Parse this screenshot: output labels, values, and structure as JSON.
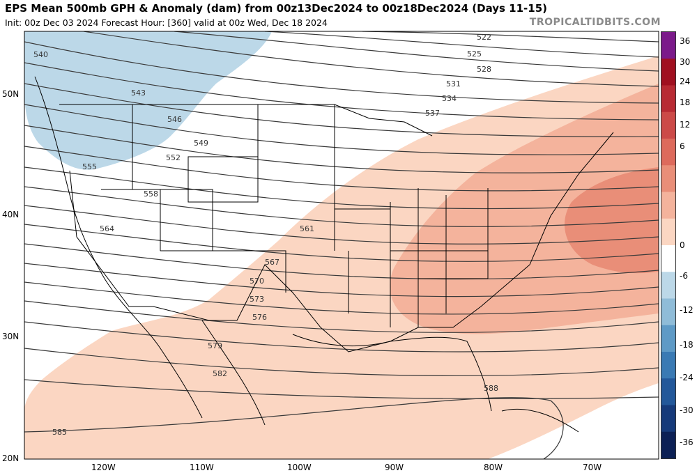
{
  "header": {
    "title": "EPS Mean 500mb GPH & Anomaly (dam) from 00z13Dec2024 to 00z18Dec2024 (Days 11-15)",
    "subtitle": "Init: 00z Dec 03 2024   Forecast Hour: [360]   valid at 00z Wed, Dec 18 2024",
    "brand": "TROPICALTIDBITS.COM"
  },
  "axes": {
    "lat_labels": [
      "50N",
      "40N",
      "30N",
      "20N"
    ],
    "lon_labels": [
      "120W",
      "110W",
      "100W",
      "90W",
      "80W",
      "70W"
    ]
  },
  "colorbar": {
    "ticks": [
      "36",
      "30",
      "24",
      "18",
      "12",
      "6",
      "0",
      "-6",
      "-12",
      "-18",
      "-24",
      "-30",
      "-36"
    ],
    "colors": [
      "#7b1a8a",
      "#a01020",
      "#b82a33",
      "#cc4a48",
      "#dd6a5c",
      "#e98e78",
      "#f4b39c",
      "#fbd6c2",
      "#ffffff",
      "#bcd8e8",
      "#8fbcd8",
      "#5e9ac6",
      "#3a7ab4",
      "#23589a",
      "#163a7a",
      "#0c2055"
    ]
  },
  "contour_labels": [
    "522",
    "525",
    "528",
    "531",
    "534",
    "537",
    "540",
    "543",
    "546",
    "549",
    "552",
    "555",
    "558",
    "561",
    "564",
    "567",
    "570",
    "573",
    "576",
    "579",
    "582",
    "585",
    "588"
  ]
}
